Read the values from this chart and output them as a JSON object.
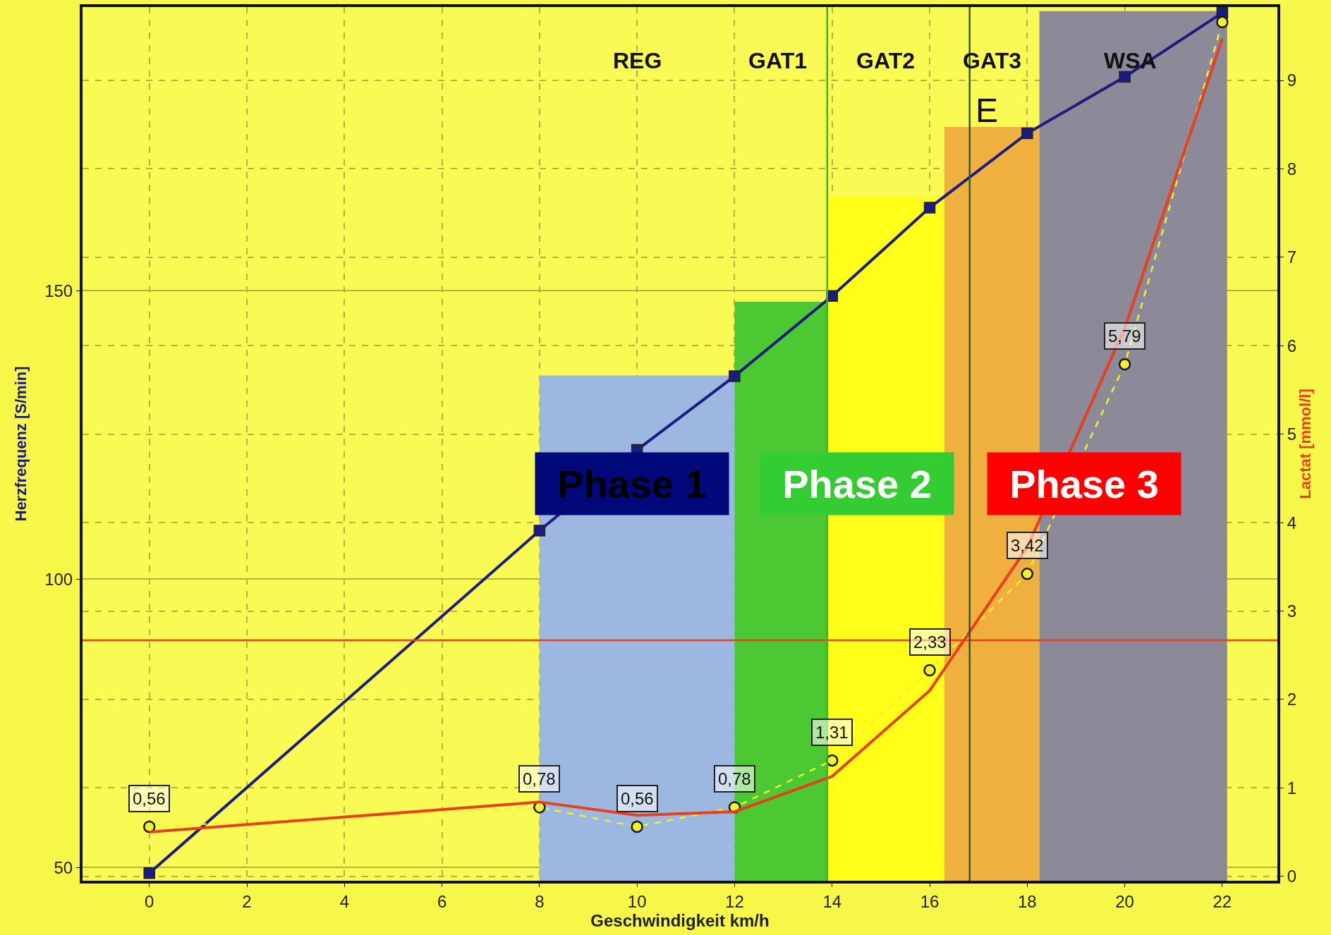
{
  "chart_data": {
    "type": "line",
    "xlabel": "Geschwindigkeit km/h",
    "ylabel": "Herzfrequenz [S/min]",
    "y2label": "Lactat [mmol/l]",
    "xlim": [
      -1.37,
      23.13
    ],
    "xticks": [
      0,
      2,
      4,
      6,
      8,
      10,
      12,
      14,
      16,
      18,
      20,
      22
    ],
    "ylim": [
      47.7,
      199.2
    ],
    "yticks": [
      50,
      100,
      150
    ],
    "y2lim": [
      -0.05,
      9.83
    ],
    "y2ticks": [
      0,
      1,
      2,
      3,
      4,
      5,
      6,
      7,
      8,
      9
    ],
    "grid": true,
    "series": [
      {
        "type": "area",
        "color": "#9db8e0",
        "x": [
          8,
          12
        ],
        "values": [
          135.3,
          135.3
        ]
      },
      {
        "type": "area",
        "color": "#4cc832",
        "x": [
          12,
          13.9
        ],
        "values": [
          148.1,
          148.1
        ]
      },
      {
        "type": "area",
        "color": "#ffff1a",
        "x": [
          13.9,
          16.3
        ],
        "values": [
          166.3,
          166.3
        ]
      },
      {
        "type": "area",
        "color": "#f0b040",
        "x": [
          16.3,
          18.25
        ],
        "values": [
          178.4,
          178.4
        ]
      },
      {
        "type": "area",
        "color": "#8c8a99",
        "x": [
          18.25,
          22.1
        ],
        "values": [
          198.5,
          198.5
        ]
      },
      {
        "color": "#1c1c80",
        "marker": "square",
        "line_style": "solid",
        "x": [
          0,
          8,
          10,
          12,
          14,
          16,
          18,
          20,
          22
        ],
        "values": [
          49.0,
          108.4,
          122.4,
          135.2,
          149.1,
          164.4,
          177.3,
          187.1,
          198.2
        ]
      },
      {
        "axis": "y2",
        "color": "#f2f030",
        "marker": "circle",
        "line_style": "dashed",
        "x": [
          0,
          8,
          10,
          12,
          14,
          16,
          18,
          20,
          22
        ],
        "values": [
          0.56,
          0.78,
          0.56,
          0.78,
          1.31,
          2.33,
          3.42,
          5.79,
          9.66
        ],
        "value_labels": [
          "0,56",
          "0,78",
          "0,56",
          "0,78",
          "1,31",
          "2,33",
          "3,42",
          "5,79",
          null
        ]
      },
      {
        "axis": "y2",
        "color": "#e8401c",
        "marker": "none",
        "line_style": "solid",
        "x": [
          0,
          8,
          10,
          12,
          14,
          16,
          18,
          20,
          22
        ],
        "values": [
          0.5,
          0.84,
          0.69,
          0.73,
          1.13,
          2.1,
          3.72,
          6.2,
          9.47
        ]
      }
    ],
    "ref_lines": [
      {
        "axis": "y2",
        "value": 2.67,
        "color": "#e8401c"
      },
      {
        "axis": "x",
        "value": 13.9,
        "color": "#3cb030"
      },
      {
        "axis": "x",
        "value": 16.82,
        "label": "E",
        "color": "#2a5a30"
      }
    ],
    "annotations": [
      "REG",
      "GAT1",
      "GAT2",
      "GAT3",
      "WSA",
      "Phase 1",
      "Phase 2",
      "Phase 3"
    ]
  }
}
